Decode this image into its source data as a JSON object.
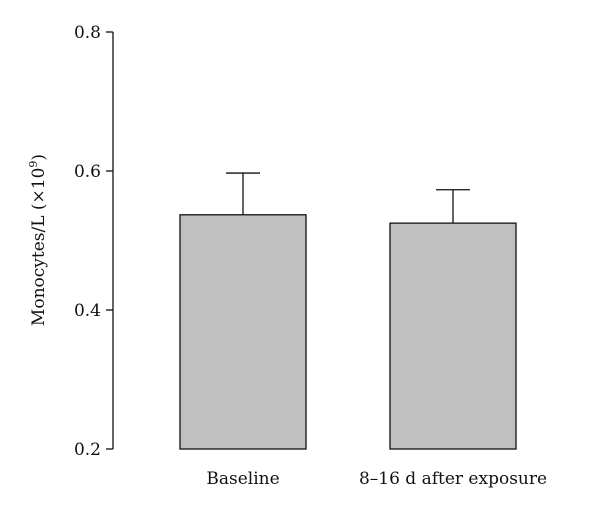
{
  "chart_data": {
    "type": "bar",
    "categories": [
      "Baseline",
      "8–16 d after exposure"
    ],
    "values": [
      0.537,
      0.525
    ],
    "error_upper": [
      0.597,
      0.573
    ],
    "ylabel": "Monocytes/L (×10",
    "ylabel_superscript": "9",
    "ylabel_suffix": ")",
    "ylim": [
      0.2,
      0.8
    ],
    "yticks": [
      0.2,
      0.4,
      0.6,
      0.8
    ],
    "ytick_labels": [
      "0.2",
      "0.4",
      "0.6",
      "0.8"
    ],
    "grid": false,
    "bar_color": "#c0c0c0",
    "bar_edge_color": "#111111"
  }
}
